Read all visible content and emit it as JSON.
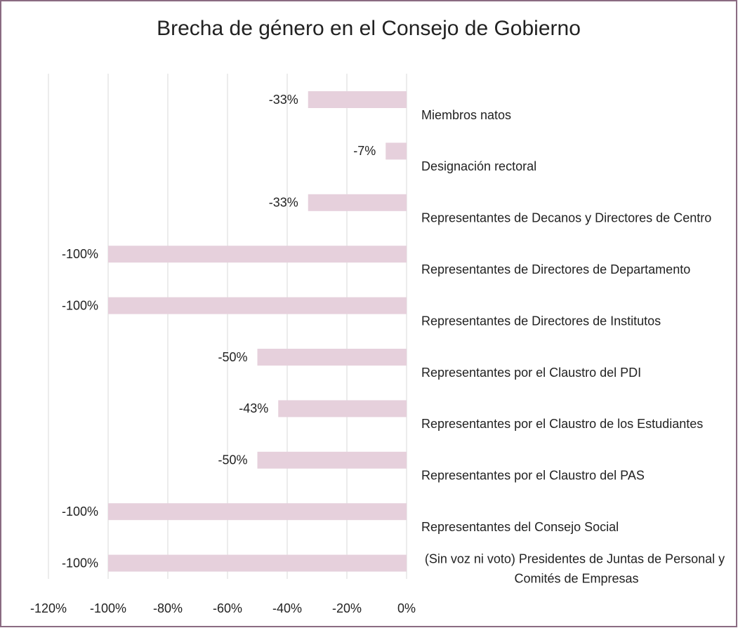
{
  "chart_data": {
    "type": "bar",
    "orientation": "horizontal",
    "title": "Brecha de género en el Consejo de Gobierno",
    "categories": [
      "Miembros natos",
      "Designación rectoral",
      "Representantes de Decanos y Directores de Centro",
      "Representantes de Directores de Departamento",
      "Representantes de Directores de Institutos",
      "Representantes por el Claustro del PDI",
      "Representantes por el Claustro de los Estudiantes",
      "Representantes por el Claustro del PAS",
      "Representantes del Consejo Social",
      "(Sin voz ni voto) Presidentes de Juntas de Personal y Comités de Empresas"
    ],
    "values": [
      -33,
      -7,
      -33,
      -100,
      -100,
      -50,
      -43,
      -50,
      -100,
      -100
    ],
    "value_labels": [
      "-33%",
      "-7%",
      "-33%",
      "-100%",
      "-100%",
      "-50%",
      "-43%",
      "-50%",
      "-100%",
      "-100%"
    ],
    "color": "#e6d0dc",
    "xlim": [
      -120,
      0
    ],
    "xticks": [
      {
        "value": -120,
        "label": "-120%"
      },
      {
        "value": -100,
        "label": "-100%"
      },
      {
        "value": -80,
        "label": "-80%"
      },
      {
        "value": -60,
        "label": "-60%"
      },
      {
        "value": -40,
        "label": "-40%"
      },
      {
        "value": -20,
        "label": "-20%"
      },
      {
        "value": 0,
        "label": "0%"
      }
    ],
    "grid": true
  }
}
